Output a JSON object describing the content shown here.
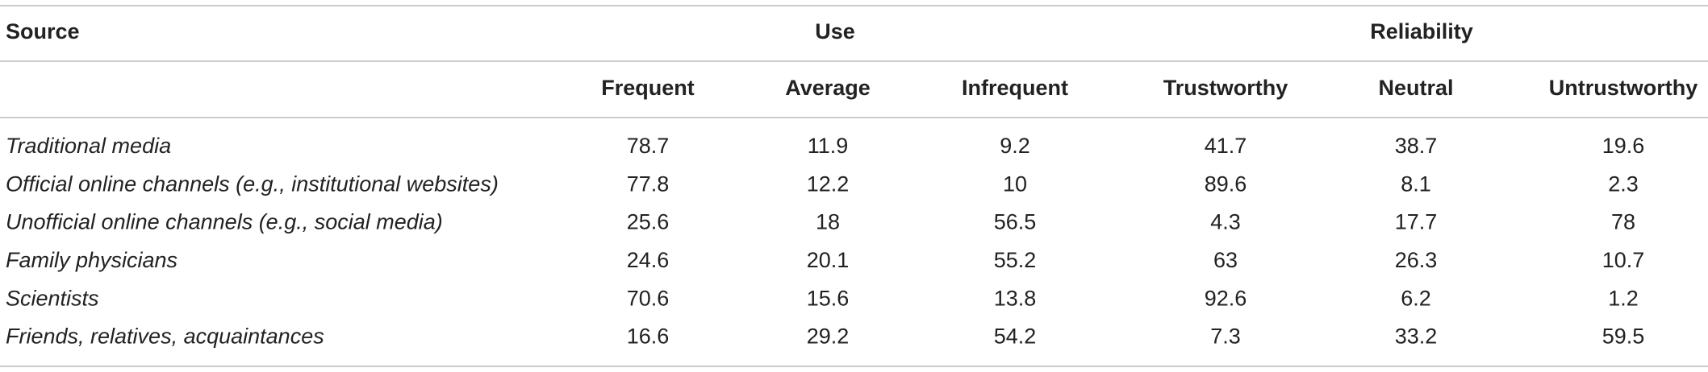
{
  "table": {
    "header": {
      "source": "Source",
      "groups": [
        "Use",
        "Reliability"
      ],
      "columns": [
        "Frequent",
        "Average",
        "Infrequent",
        "Trustworthy",
        "Neutral",
        "Untrustworthy"
      ]
    },
    "rows": [
      {
        "label": "Traditional media",
        "values": [
          78.7,
          11.9,
          9.2,
          41.7,
          38.7,
          19.6
        ]
      },
      {
        "label": "Official online channels (e.g., institutional websites)",
        "values": [
          77.8,
          12.2,
          10,
          89.6,
          8.1,
          2.3
        ]
      },
      {
        "label": "Unofficial online channels (e.g., social media)",
        "values": [
          25.6,
          18,
          56.5,
          4.3,
          17.7,
          78
        ]
      },
      {
        "label": "Family physicians",
        "values": [
          24.6,
          20.1,
          55.2,
          63,
          26.3,
          10.7
        ]
      },
      {
        "label": "Scientists",
        "values": [
          70.6,
          15.6,
          13.8,
          92.6,
          6.2,
          1.2
        ]
      },
      {
        "label": "Friends, relatives, acquaintances",
        "values": [
          16.6,
          29.2,
          54.2,
          7.3,
          33.2,
          59.5
        ]
      }
    ]
  }
}
